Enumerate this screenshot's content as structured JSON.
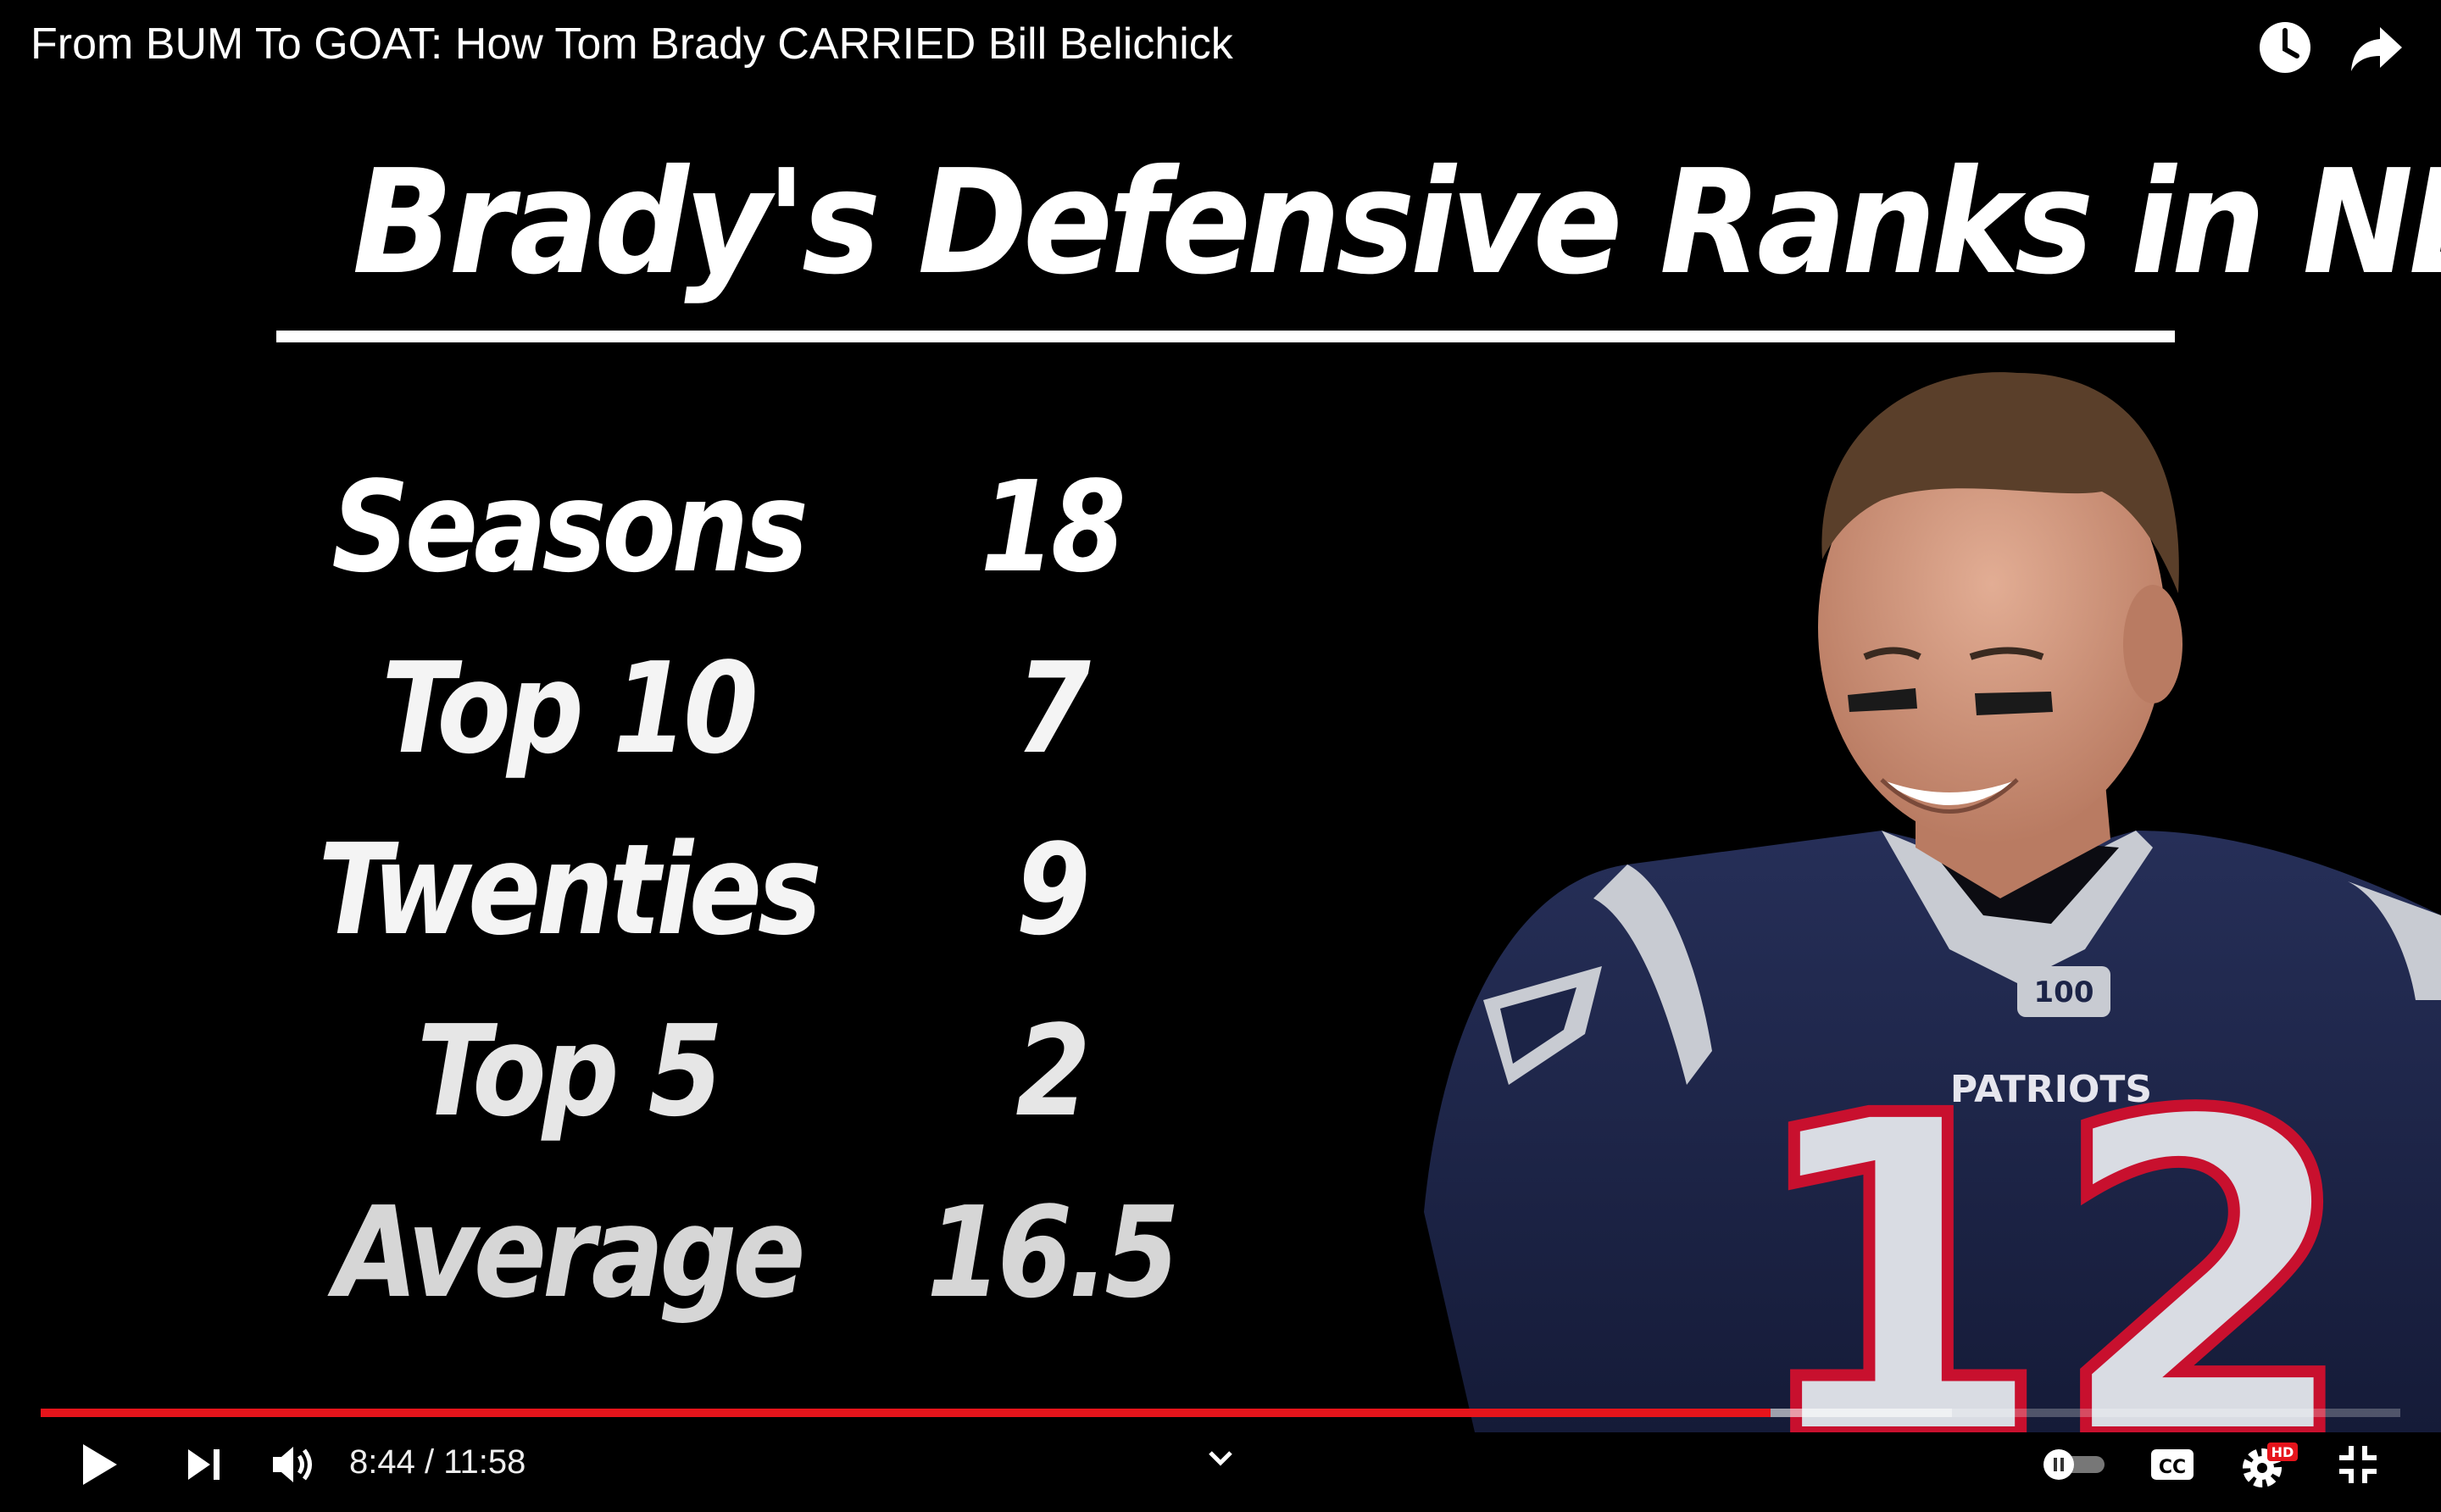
{
  "header": {
    "video_title": "From BUM To GOAT: How Tom Brady CARRIED Bill Belichick",
    "watch_later_icon": "clock-icon",
    "share_icon": "share-arrow-icon"
  },
  "slide": {
    "title": "Brady's Defensive Ranks in NE",
    "stats": [
      {
        "label": "Seasons",
        "value": "18"
      },
      {
        "label": "Top 10",
        "value": "7"
      },
      {
        "label": "Twenties",
        "value": "9"
      },
      {
        "label": "Top 5",
        "value": "2"
      },
      {
        "label": "Average",
        "value": "16.5"
      }
    ],
    "jersey": {
      "team_text": "PATRIOTS",
      "number": "12",
      "patch_text": "100",
      "colors": {
        "navy": "#1c2447",
        "silver": "#c8cbd2",
        "red": "#c8102e"
      }
    }
  },
  "player_controls": {
    "current_time": "8:44",
    "duration": "11:58",
    "time_display": "8:44 / 11:58",
    "progress_fraction": 0.733,
    "buffered_fraction": 0.81,
    "hd_badge": "HD",
    "cc_label": "CC",
    "accent_color": "#e6141b"
  }
}
